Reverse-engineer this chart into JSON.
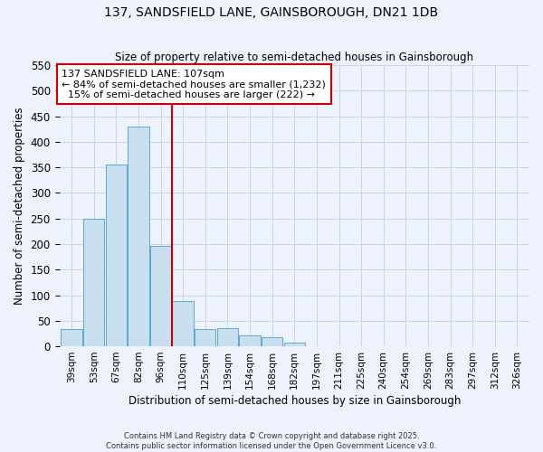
{
  "title": "137, SANDSFIELD LANE, GAINSBOROUGH, DN21 1DB",
  "subtitle": "Size of property relative to semi-detached houses in Gainsborough",
  "xlabel": "Distribution of semi-detached houses by size in Gainsborough",
  "ylabel": "Number of semi-detached properties",
  "bar_labels": [
    "39sqm",
    "53sqm",
    "67sqm",
    "82sqm",
    "96sqm",
    "110sqm",
    "125sqm",
    "139sqm",
    "154sqm",
    "168sqm",
    "182sqm",
    "197sqm",
    "211sqm",
    "225sqm",
    "240sqm",
    "254sqm",
    "269sqm",
    "283sqm",
    "297sqm",
    "312sqm",
    "326sqm"
  ],
  "bar_values": [
    33,
    250,
    355,
    430,
    197,
    88,
    33,
    35,
    22,
    17,
    8,
    0,
    0,
    0,
    0,
    0,
    0,
    0,
    0,
    0,
    0
  ],
  "bar_color": "#c8dff0",
  "bar_edge_color": "#5fa8d0",
  "vline_color": "#cc0000",
  "ylim": [
    0,
    550
  ],
  "yticks": [
    0,
    50,
    100,
    150,
    200,
    250,
    300,
    350,
    400,
    450,
    500,
    550
  ],
  "annotation_title": "137 SANDSFIELD LANE: 107sqm",
  "annotation_line1": "← 84% of semi-detached houses are smaller (1,232)",
  "annotation_line2": "  15% of semi-detached houses are larger (222) →",
  "footnote1": "Contains HM Land Registry data © Crown copyright and database right 2025.",
  "footnote2": "Contains public sector information licensed under the Open Government Licence v3.0.",
  "bg_color": "#eef2fc",
  "grid_color": "#c5d5ec"
}
